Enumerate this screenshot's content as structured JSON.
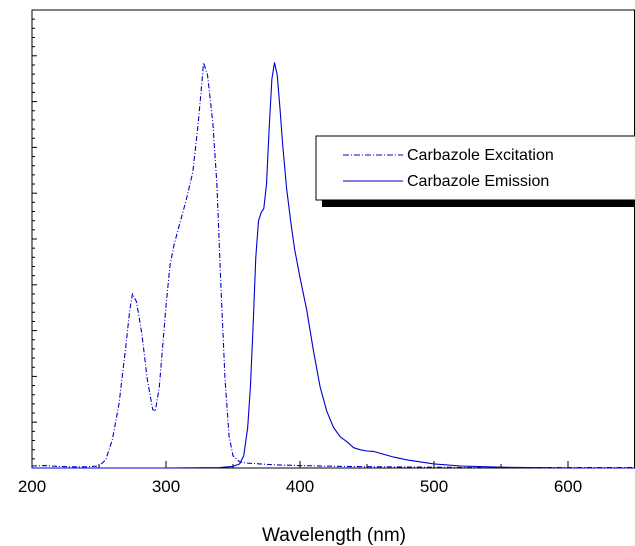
{
  "chart_data": {
    "type": "line",
    "title": "",
    "xlabel": "Wavelength (nm)",
    "ylabel": "",
    "xlim": [
      200,
      650
    ],
    "ylim": [
      0,
      1.13
    ],
    "x_ticks": [
      200,
      300,
      400,
      500,
      600
    ],
    "grid": false,
    "legend": "top-right",
    "colors": {
      "series": "#0000cc",
      "axis": "#000000"
    },
    "series": [
      {
        "name": "Carbazole Excitation",
        "style": "dash-dot",
        "points": [
          [
            200,
            0.005
          ],
          [
            210,
            0.006
          ],
          [
            220,
            0.004
          ],
          [
            230,
            0.003
          ],
          [
            240,
            0.003
          ],
          [
            250,
            0.005
          ],
          [
            255,
            0.02
          ],
          [
            260,
            0.07
          ],
          [
            265,
            0.16
          ],
          [
            270,
            0.3
          ],
          [
            273,
            0.39
          ],
          [
            275,
            0.43
          ],
          [
            278,
            0.41
          ],
          [
            282,
            0.33
          ],
          [
            286,
            0.22
          ],
          [
            290,
            0.145
          ],
          [
            292,
            0.14
          ],
          [
            295,
            0.2
          ],
          [
            300,
            0.4
          ],
          [
            303,
            0.5
          ],
          [
            306,
            0.55
          ],
          [
            310,
            0.6
          ],
          [
            315,
            0.66
          ],
          [
            320,
            0.73
          ],
          [
            324,
            0.85
          ],
          [
            327,
            0.96
          ],
          [
            328,
            1.0
          ],
          [
            331,
            0.97
          ],
          [
            335,
            0.85
          ],
          [
            338,
            0.7
          ],
          [
            341,
            0.45
          ],
          [
            344,
            0.22
          ],
          [
            347,
            0.08
          ],
          [
            350,
            0.03
          ],
          [
            355,
            0.015
          ],
          [
            360,
            0.012
          ],
          [
            370,
            0.01
          ],
          [
            380,
            0.008
          ],
          [
            400,
            0.006
          ],
          [
            430,
            0.004
          ],
          [
            460,
            0.003
          ],
          [
            500,
            0.002
          ],
          [
            550,
            0.001
          ],
          [
            600,
            0.001
          ],
          [
            650,
            0.001
          ]
        ]
      },
      {
        "name": "Carbazole Emission",
        "style": "solid",
        "points": [
          [
            200,
            0.0
          ],
          [
            300,
            0.0
          ],
          [
            340,
            0.001
          ],
          [
            350,
            0.004
          ],
          [
            355,
            0.01
          ],
          [
            358,
            0.03
          ],
          [
            361,
            0.1
          ],
          [
            363,
            0.2
          ],
          [
            365,
            0.35
          ],
          [
            367,
            0.52
          ],
          [
            369,
            0.61
          ],
          [
            371,
            0.63
          ],
          [
            373,
            0.64
          ],
          [
            375,
            0.7
          ],
          [
            377,
            0.84
          ],
          [
            379,
            0.96
          ],
          [
            381,
            1.0
          ],
          [
            383,
            0.97
          ],
          [
            385,
            0.89
          ],
          [
            387,
            0.8
          ],
          [
            390,
            0.69
          ],
          [
            393,
            0.61
          ],
          [
            396,
            0.54
          ],
          [
            400,
            0.47
          ],
          [
            405,
            0.39
          ],
          [
            410,
            0.29
          ],
          [
            415,
            0.2
          ],
          [
            420,
            0.14
          ],
          [
            425,
            0.1
          ],
          [
            430,
            0.077
          ],
          [
            435,
            0.065
          ],
          [
            440,
            0.05
          ],
          [
            445,
            0.045
          ],
          [
            450,
            0.042
          ],
          [
            455,
            0.041
          ],
          [
            460,
            0.036
          ],
          [
            470,
            0.027
          ],
          [
            480,
            0.02
          ],
          [
            500,
            0.01
          ],
          [
            520,
            0.005
          ],
          [
            550,
            0.002
          ],
          [
            600,
            0.0
          ],
          [
            650,
            0.0
          ]
        ]
      }
    ]
  }
}
